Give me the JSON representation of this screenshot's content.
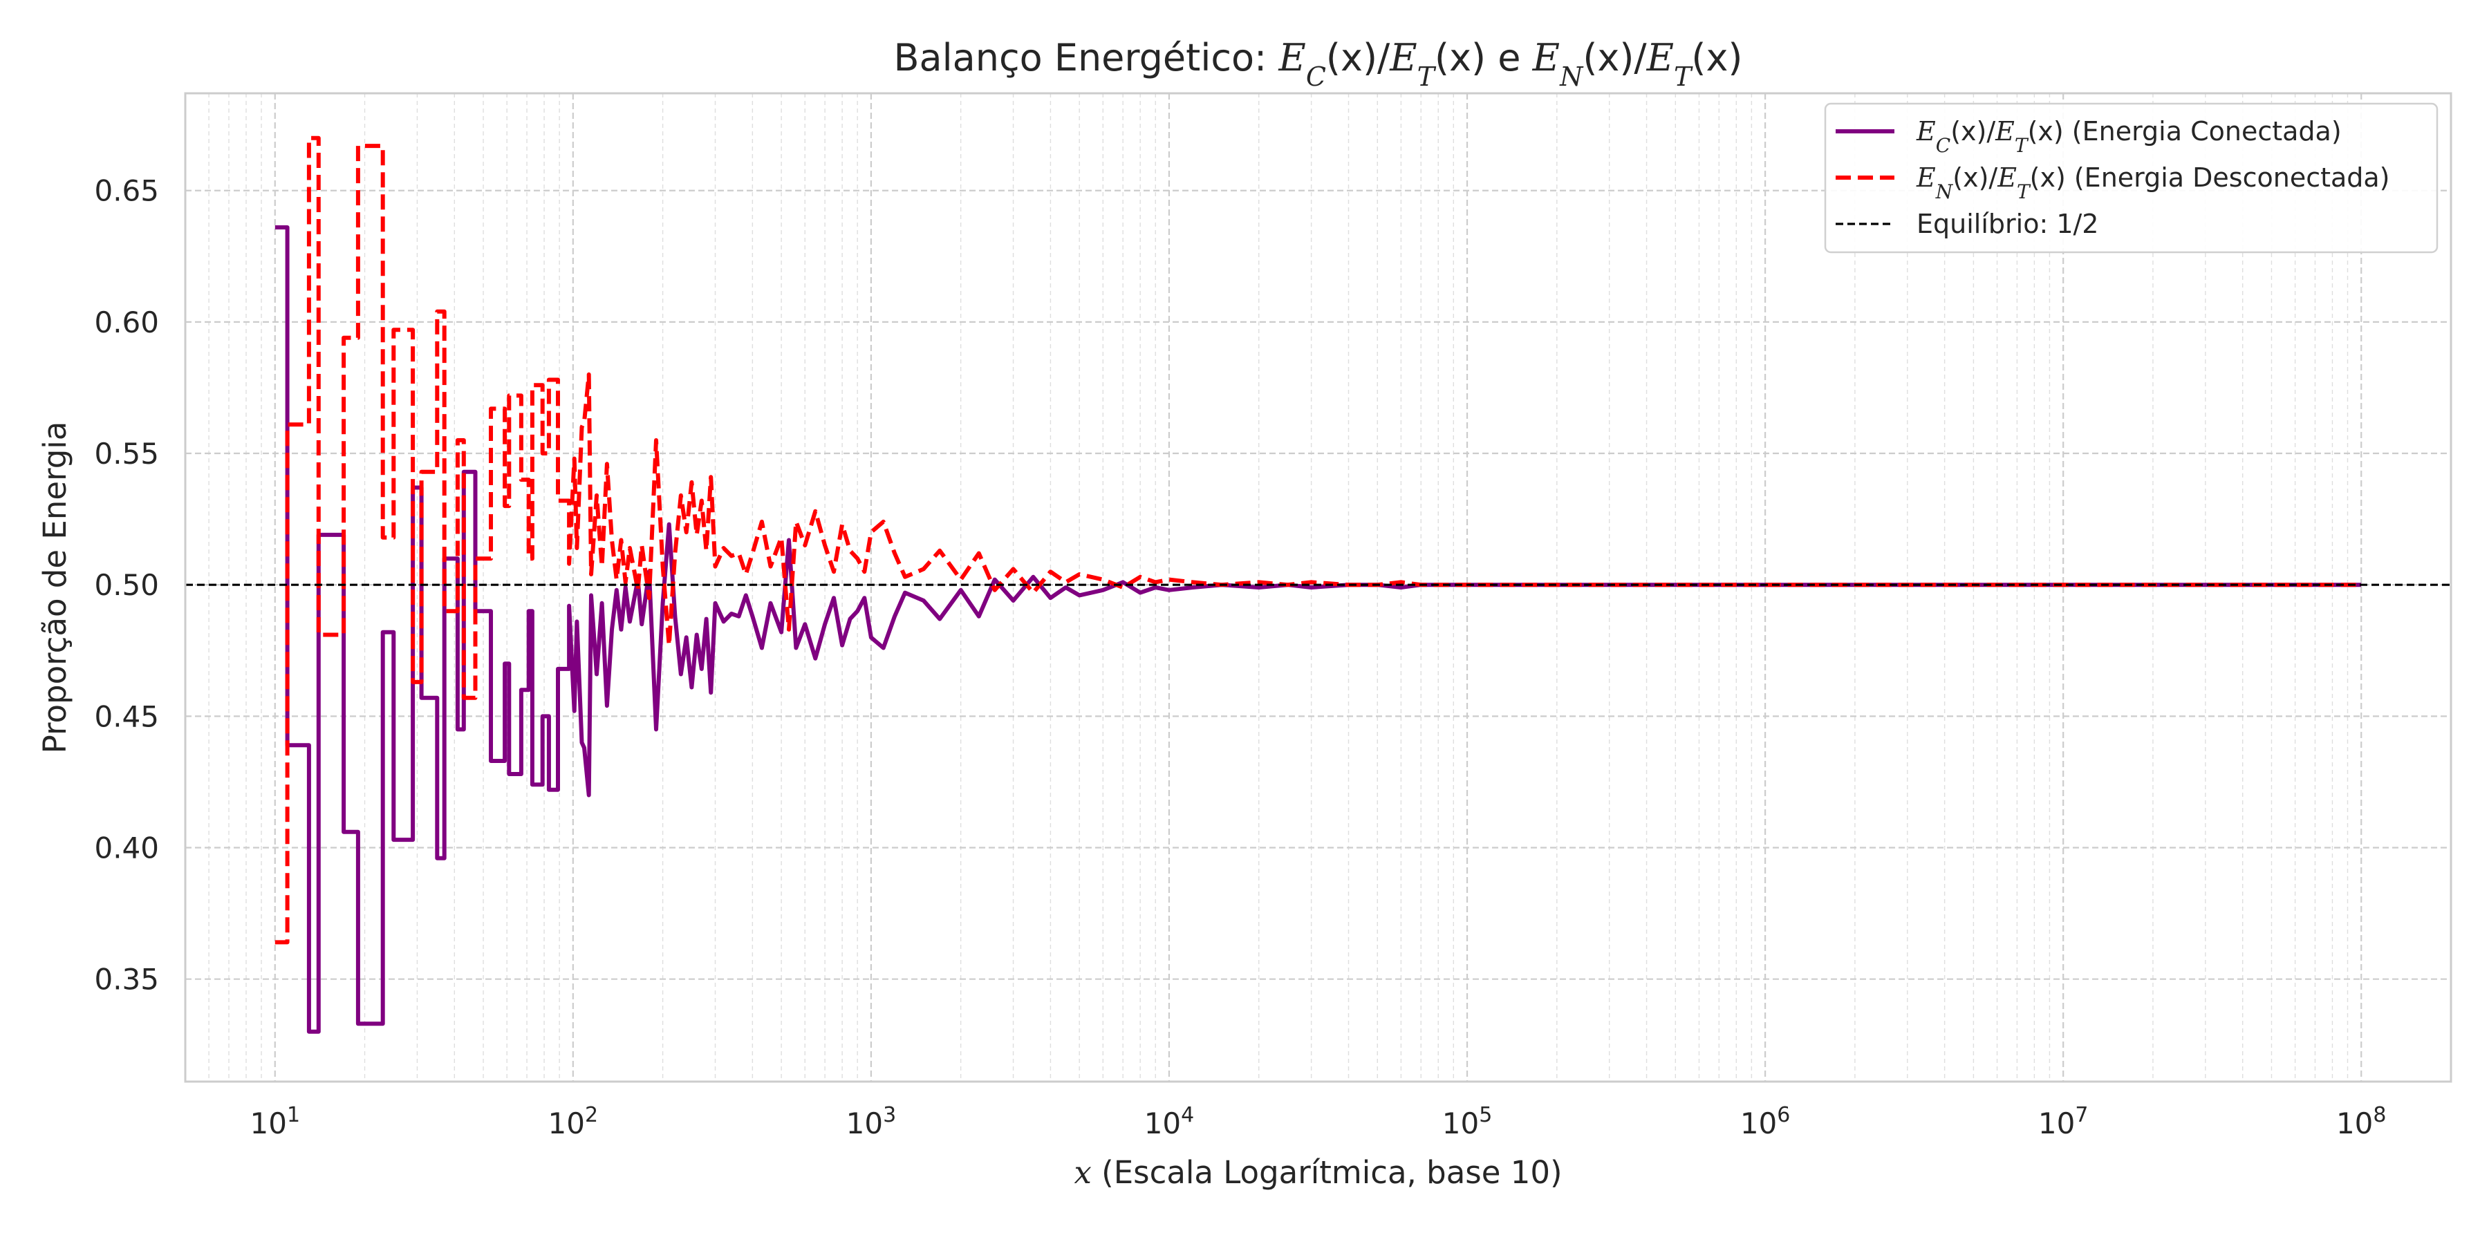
{
  "chart_data": {
    "type": "line",
    "title": "Balanço Energético: E_C(x)/E_T(x) e E_N(x)/E_T(x)",
    "title_parts": [
      "Balanço Energético: ",
      "E",
      "C",
      "(x)/",
      "E",
      "T",
      "(x) e ",
      "E",
      "N",
      "(x)/",
      "E",
      "T",
      "(x)"
    ],
    "xlabel": "x (Escala Logarítmica, base 10)",
    "xlabel_parts": [
      "x",
      " (Escala Logarítmica, base 10)"
    ],
    "ylabel": "Proporção de Energia",
    "x_scale": "log",
    "xlim": [
      5,
      200000000
    ],
    "ylim": [
      0.311,
      0.687
    ],
    "grid": true,
    "legend_position": "top-right",
    "x_ticks": [
      {
        "base": "10",
        "exp": "1",
        "value": 10
      },
      {
        "base": "10",
        "exp": "2",
        "value": 100
      },
      {
        "base": "10",
        "exp": "3",
        "value": 1000
      },
      {
        "base": "10",
        "exp": "4",
        "value": 10000
      },
      {
        "base": "10",
        "exp": "5",
        "value": 100000
      },
      {
        "base": "10",
        "exp": "6",
        "value": 1000000
      },
      {
        "base": "10",
        "exp": "7",
        "value": 10000000
      },
      {
        "base": "10",
        "exp": "8",
        "value": 100000000
      }
    ],
    "y_ticks": [
      "0.35",
      "0.40",
      "0.45",
      "0.50",
      "0.55",
      "0.60",
      "0.65"
    ],
    "series": [
      {
        "name": "E_C(x)/E_T(x) (Energia Conectada)",
        "legend_parts": [
          "E",
          "C",
          "(x)/",
          "E",
          "T",
          "(x) (Energia Conectada)"
        ],
        "color": "#800080",
        "style": "solid",
        "x": [
          10,
          11,
          11,
          13,
          13,
          14,
          14,
          17,
          17,
          19,
          19,
          23,
          23,
          25,
          25,
          29,
          29,
          31,
          31,
          35,
          35,
          37,
          37,
          41,
          41,
          43,
          43,
          47,
          47,
          53,
          53,
          59,
          59,
          61,
          61,
          67,
          67,
          71,
          71,
          73,
          73,
          79,
          79,
          83,
          83,
          89,
          89,
          97,
          97,
          101,
          103,
          107,
          109,
          113,
          115,
          120,
          125,
          130,
          135,
          140,
          145,
          150,
          155,
          160,
          165,
          170,
          180,
          190,
          200,
          210,
          220,
          230,
          240,
          250,
          260,
          270,
          280,
          290,
          300,
          320,
          340,
          360,
          380,
          400,
          430,
          460,
          500,
          530,
          560,
          600,
          650,
          700,
          750,
          800,
          850,
          900,
          950,
          1000,
          1100,
          1200,
          1300,
          1500,
          1700,
          2000,
          2300,
          2600,
          3000,
          3500,
          4000,
          4500,
          5000,
          6000,
          7000,
          8000,
          9000,
          10000,
          12000,
          15000,
          20000,
          25000,
          30000,
          40000,
          50000,
          60000,
          70000,
          80000,
          90000,
          100000,
          150000,
          200000,
          300000,
          500000,
          700000,
          1000000,
          2000000,
          5000000,
          10000000,
          100000000
        ],
        "y": [
          0.636,
          0.636,
          0.439,
          0.439,
          0.33,
          0.33,
          0.519,
          0.519,
          0.406,
          0.406,
          0.333,
          0.333,
          0.482,
          0.482,
          0.403,
          0.403,
          0.537,
          0.537,
          0.457,
          0.457,
          0.396,
          0.396,
          0.51,
          0.51,
          0.445,
          0.445,
          0.543,
          0.543,
          0.49,
          0.49,
          0.433,
          0.433,
          0.47,
          0.47,
          0.428,
          0.428,
          0.46,
          0.46,
          0.49,
          0.49,
          0.424,
          0.424,
          0.45,
          0.45,
          0.422,
          0.422,
          0.468,
          0.468,
          0.492,
          0.452,
          0.486,
          0.44,
          0.438,
          0.42,
          0.496,
          0.466,
          0.493,
          0.454,
          0.483,
          0.498,
          0.483,
          0.499,
          0.486,
          0.494,
          0.502,
          0.485,
          0.505,
          0.445,
          0.493,
          0.523,
          0.488,
          0.466,
          0.48,
          0.461,
          0.481,
          0.468,
          0.487,
          0.459,
          0.493,
          0.486,
          0.489,
          0.488,
          0.496,
          0.488,
          0.476,
          0.493,
          0.482,
          0.517,
          0.476,
          0.485,
          0.472,
          0.485,
          0.495,
          0.477,
          0.487,
          0.49,
          0.495,
          0.48,
          0.476,
          0.488,
          0.497,
          0.494,
          0.487,
          0.498,
          0.488,
          0.502,
          0.494,
          0.503,
          0.495,
          0.499,
          0.496,
          0.498,
          0.501,
          0.497,
          0.499,
          0.498,
          0.499,
          0.5,
          0.499,
          0.5,
          0.499,
          0.5,
          0.5,
          0.499,
          0.5,
          0.5,
          0.5,
          0.5,
          0.5,
          0.5,
          0.5,
          0.5,
          0.5,
          0.5,
          0.5,
          0.5,
          0.5,
          0.5
        ]
      },
      {
        "name": "E_N(x)/E_T(x) (Energia Desconectada)",
        "legend_parts": [
          "E",
          "N",
          "(x)/",
          "E",
          "T",
          "(x) (Energia Desconectada)"
        ],
        "color": "#ff0000",
        "style": "dashed",
        "x": [
          10,
          11,
          11,
          13,
          13,
          14,
          14,
          17,
          17,
          19,
          19,
          23,
          23,
          25,
          25,
          29,
          29,
          31,
          31,
          35,
          35,
          37,
          37,
          41,
          41,
          43,
          43,
          47,
          47,
          53,
          53,
          59,
          59,
          61,
          61,
          67,
          67,
          71,
          71,
          73,
          73,
          79,
          79,
          83,
          83,
          89,
          89,
          97,
          97,
          101,
          103,
          107,
          109,
          113,
          115,
          120,
          125,
          130,
          135,
          140,
          145,
          150,
          155,
          160,
          165,
          170,
          180,
          190,
          200,
          210,
          220,
          230,
          240,
          250,
          260,
          270,
          280,
          290,
          300,
          320,
          340,
          360,
          380,
          400,
          430,
          460,
          500,
          530,
          560,
          600,
          650,
          700,
          750,
          800,
          850,
          900,
          950,
          1000,
          1100,
          1200,
          1300,
          1500,
          1700,
          2000,
          2300,
          2600,
          3000,
          3500,
          4000,
          4500,
          5000,
          6000,
          7000,
          8000,
          9000,
          10000,
          12000,
          15000,
          20000,
          25000,
          30000,
          40000,
          50000,
          60000,
          70000,
          80000,
          90000,
          100000,
          150000,
          200000,
          300000,
          500000,
          700000,
          1000000,
          2000000,
          5000000,
          10000000,
          100000000
        ],
        "y": [
          0.364,
          0.364,
          0.561,
          0.561,
          0.67,
          0.67,
          0.481,
          0.481,
          0.594,
          0.594,
          0.667,
          0.667,
          0.518,
          0.518,
          0.597,
          0.597,
          0.463,
          0.463,
          0.543,
          0.543,
          0.604,
          0.604,
          0.49,
          0.49,
          0.555,
          0.555,
          0.457,
          0.457,
          0.51,
          0.51,
          0.567,
          0.567,
          0.53,
          0.53,
          0.572,
          0.572,
          0.54,
          0.54,
          0.51,
          0.51,
          0.576,
          0.576,
          0.55,
          0.55,
          0.578,
          0.578,
          0.532,
          0.532,
          0.508,
          0.548,
          0.514,
          0.56,
          0.562,
          0.58,
          0.504,
          0.534,
          0.507,
          0.546,
          0.517,
          0.502,
          0.517,
          0.501,
          0.514,
          0.506,
          0.498,
          0.515,
          0.495,
          0.555,
          0.507,
          0.477,
          0.512,
          0.534,
          0.52,
          0.539,
          0.519,
          0.532,
          0.513,
          0.541,
          0.507,
          0.514,
          0.511,
          0.512,
          0.504,
          0.512,
          0.524,
          0.507,
          0.518,
          0.483,
          0.524,
          0.515,
          0.528,
          0.515,
          0.505,
          0.523,
          0.513,
          0.51,
          0.505,
          0.52,
          0.524,
          0.512,
          0.503,
          0.506,
          0.513,
          0.502,
          0.512,
          0.498,
          0.506,
          0.497,
          0.505,
          0.501,
          0.504,
          0.502,
          0.499,
          0.503,
          0.501,
          0.502,
          0.501,
          0.5,
          0.501,
          0.5,
          0.501,
          0.5,
          0.5,
          0.501,
          0.5,
          0.5,
          0.5,
          0.5,
          0.5,
          0.5,
          0.5,
          0.5,
          0.5,
          0.5,
          0.5,
          0.5,
          0.5,
          0.5
        ]
      },
      {
        "name": "Equilíbrio: 1/2",
        "legend_parts": [
          "Equilíbrio: 1/2"
        ],
        "color": "#000000",
        "style": "dashed-thin",
        "y_constant": 0.5
      }
    ]
  }
}
